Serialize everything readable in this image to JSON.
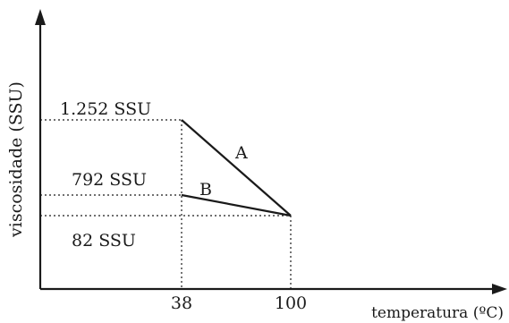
{
  "chart_data": {
    "type": "line",
    "title": "",
    "xlabel": "temperatura (ºC)",
    "ylabel": "viscosidade (SSU)",
    "x_ticks": [
      "38",
      "100"
    ],
    "y_ticks": [
      "1.252 SSU",
      "792 SSU",
      "82 SSU"
    ],
    "series": [
      {
        "name": "A",
        "points": [
          [
            38,
            1252
          ],
          [
            100,
            82
          ]
        ]
      },
      {
        "name": "B",
        "points": [
          [
            38,
            792
          ],
          [
            100,
            82
          ]
        ]
      }
    ],
    "grid": false
  }
}
